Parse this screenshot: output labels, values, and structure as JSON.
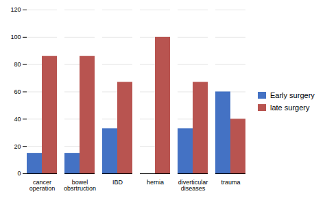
{
  "chart_data": {
    "type": "bar",
    "categories": [
      "cancer\noperation",
      "bowel\nobsrtruction",
      "IBD",
      "hernia",
      "diverticular\ndiseases",
      "trauma"
    ],
    "series": [
      {
        "name": "Early surgery",
        "color": "#4472C4",
        "values": [
          15,
          15,
          33,
          0,
          33,
          60
        ]
      },
      {
        "name": "late surgery",
        "color": "#B85450",
        "values": [
          86,
          86,
          67,
          100,
          67,
          40
        ]
      }
    ],
    "ylim": [
      0,
      120
    ],
    "yticks": [
      0,
      20,
      40,
      60,
      80,
      100,
      120
    ],
    "grid": true,
    "legend": "right"
  }
}
